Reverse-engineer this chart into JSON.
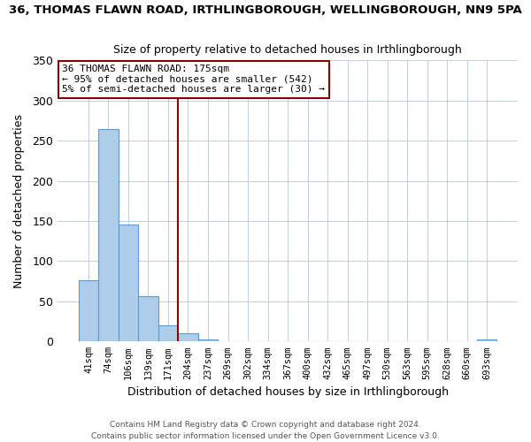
{
  "title": "36, THOMAS FLAWN ROAD, IRTHLINGBOROUGH, WELLINGBOROUGH, NN9 5PA",
  "subtitle": "Size of property relative to detached houses in Irthlingborough",
  "xlabel": "Distribution of detached houses by size in Irthlingborough",
  "ylabel": "Number of detached properties",
  "footer_line1": "Contains HM Land Registry data © Crown copyright and database right 2024.",
  "footer_line2": "Contains public sector information licensed under the Open Government Licence v3.0.",
  "bin_labels": [
    "41sqm",
    "74sqm",
    "106sqm",
    "139sqm",
    "171sqm",
    "204sqm",
    "237sqm",
    "269sqm",
    "302sqm",
    "334sqm",
    "367sqm",
    "400sqm",
    "432sqm",
    "465sqm",
    "497sqm",
    "530sqm",
    "563sqm",
    "595sqm",
    "628sqm",
    "660sqm",
    "693sqm"
  ],
  "bin_values": [
    76,
    265,
    146,
    57,
    20,
    10,
    3,
    0,
    0,
    0,
    0,
    0,
    0,
    0,
    0,
    0,
    0,
    0,
    0,
    0,
    2
  ],
  "bar_color": "#aecde8",
  "bar_edge_color": "#5b9bd5",
  "vline_color": "#8b0000",
  "annotation_title": "36 THOMAS FLAWN ROAD: 175sqm",
  "annotation_line2": "← 95% of detached houses are smaller (542)",
  "annotation_line3": "5% of semi-detached houses are larger (30) →",
  "annotation_box_color": "#ffffff",
  "annotation_box_edge_color": "#8b0000",
  "ylim": [
    0,
    350
  ],
  "yticks": [
    0,
    50,
    100,
    150,
    200,
    250,
    300,
    350
  ],
  "background_color": "#ffffff",
  "grid_color": "#c0d0e0"
}
